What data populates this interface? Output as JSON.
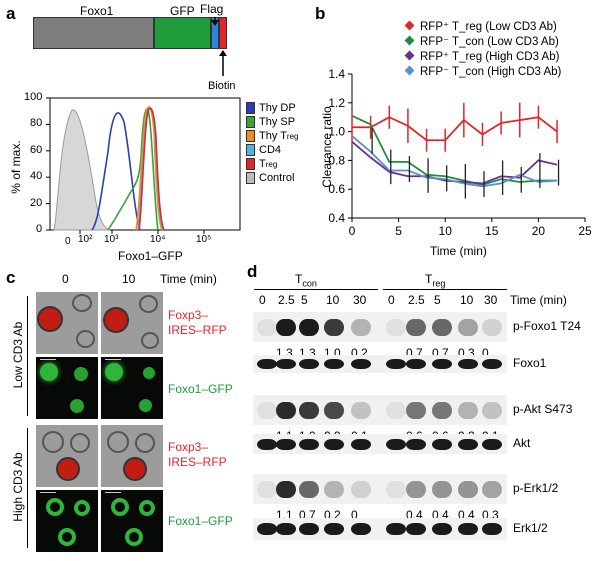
{
  "panel_a": {
    "letter": "a",
    "construct": {
      "foxo1": "Foxo1",
      "gfp": "GFP",
      "flag": "Flag",
      "biotin": "Biotin"
    },
    "histogram": {
      "ylabel": "% of max.",
      "xlabel": "Foxo1–GFP",
      "yticks": [
        "0",
        "20",
        "40",
        "60",
        "80",
        "100"
      ],
      "xticks": [
        "0",
        "10²",
        "10³",
        "10⁴",
        "10⁵"
      ],
      "legend": [
        {
          "label": "Thy DP",
          "sub": "",
          "color": "#2b3fb3"
        },
        {
          "label": "Thy SP",
          "sub": "",
          "color": "#3aa23a"
        },
        {
          "label": "Thy T",
          "sub": "reg",
          "color": "#f08c1e"
        },
        {
          "label": "CD4",
          "sub": "",
          "color": "#4fb6d8"
        },
        {
          "label": "T",
          "sub": "reg",
          "color": "#e0262a"
        },
        {
          "label": "Control",
          "sub": "",
          "color": "#bdbdbd"
        }
      ]
    }
  },
  "panel_b": {
    "letter": "b"
  },
  "chart_data": {
    "type": "line",
    "title": "",
    "xlabel": "Time (min)",
    "ylabel": "Clearance ratio",
    "xlim": [
      0,
      25
    ],
    "ylim": [
      0.4,
      1.4
    ],
    "xticks": [
      "0",
      "5",
      "10",
      "15",
      "20",
      "25"
    ],
    "yticks": [
      "0.4",
      "0.6",
      "0.8",
      "1.0",
      "1.2",
      "1.4"
    ],
    "legend_position": "top-right",
    "x": [
      0,
      2,
      4,
      6,
      8,
      10,
      12,
      14,
      16,
      18,
      20,
      22
    ],
    "series": [
      {
        "name": "RFP⁺ T_reg (Low CD3 Ab)",
        "marker": "diamond",
        "color": "#e0262a",
        "values": [
          1.03,
          1.03,
          1.1,
          1.04,
          0.94,
          0.94,
          1.08,
          0.98,
          1.06,
          1.08,
          1.1,
          1.0
        ]
      },
      {
        "name": "RFP⁻ T_con (Low CD3 Ab)",
        "marker": "diamond",
        "color": "#1e8f3c",
        "values": [
          1.11,
          1.05,
          0.79,
          0.79,
          0.7,
          0.69,
          0.66,
          0.63,
          0.67,
          0.65,
          0.66,
          0.66
        ]
      },
      {
        "name": "RFP⁺ T_reg (High CD3 Ab)",
        "marker": "diamond",
        "color": "#6a2f91",
        "values": [
          0.93,
          0.82,
          0.72,
          0.69,
          0.69,
          0.66,
          0.65,
          0.64,
          0.69,
          0.68,
          0.8,
          0.77
        ]
      },
      {
        "name": "RFP⁻ T_con (High CD3 Ab)",
        "marker": "diamond",
        "color": "#5a8fd1",
        "values": [
          0.97,
          0.86,
          0.73,
          0.73,
          0.68,
          0.67,
          0.64,
          0.62,
          0.64,
          0.7,
          0.65,
          0.66
        ]
      }
    ]
  },
  "panel_c": {
    "letter": "c",
    "time_labels": [
      "0",
      "10"
    ],
    "time_unit": "Time (min)",
    "row_labels": [
      "Foxp3–\nIRES–RFP",
      "Foxo1–GFP",
      "Foxp3–\nIRES–RFP",
      "Foxo1–GFP"
    ],
    "condition_labels": [
      "Low CD3 Ab",
      "High CD3 Ab"
    ]
  },
  "panel_d": {
    "letter": "d",
    "group_tcon": "T",
    "group_tcon_sub": "con",
    "group_treg": "T",
    "group_treg_sub": "reg",
    "lane_times": [
      "0",
      "2.5",
      "5",
      "10",
      "30",
      "0",
      "2.5",
      "5",
      "10",
      "30"
    ],
    "time_unit": "Time (min)",
    "blots": [
      {
        "label": "p-Foxo1 T24",
        "values": [
          "1.3",
          "1.3",
          "1.0",
          "0.2",
          "0.7",
          "0.7",
          "0.3",
          "0"
        ]
      },
      {
        "label": "Foxo1",
        "values": []
      },
      {
        "label": "p-Akt S473",
        "values": [
          "1.1",
          "1.0",
          "0.9",
          "0.1",
          "0.6",
          "0.6",
          "0.2",
          "0.1"
        ]
      },
      {
        "label": "Akt",
        "values": []
      },
      {
        "label": "p-Erk1/2",
        "values": [
          "1.1",
          "0.7",
          "0.2",
          "0",
          "0.4",
          "0.4",
          "0.4",
          "0.3"
        ]
      },
      {
        "label": "Erk1/2",
        "values": []
      }
    ]
  }
}
